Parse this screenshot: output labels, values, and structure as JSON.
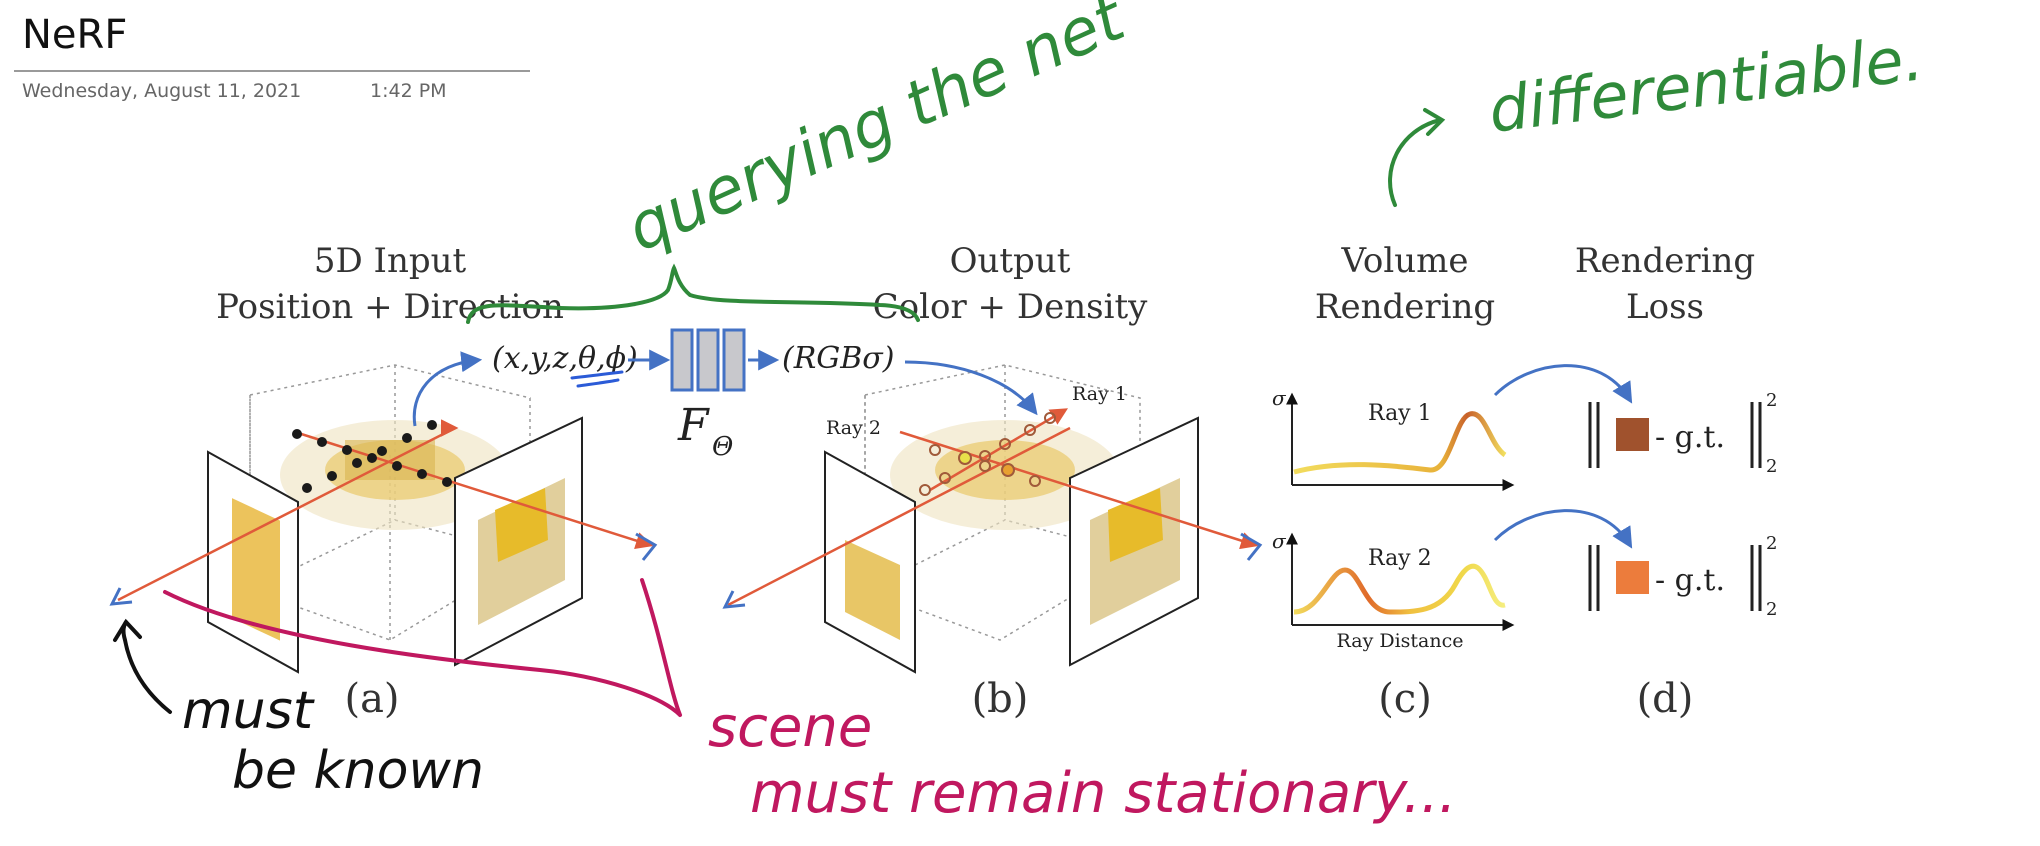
{
  "note": {
    "title": "NeRF",
    "date": "Wednesday, August 11, 2021",
    "time": "1:42 PM"
  },
  "figure": {
    "a": {
      "heading_line1": "5D Input",
      "heading_line2": "Position + Direction",
      "label": "(a)"
    },
    "input_tuple": "(x,y,z,θ,ϕ)",
    "network_label": "F",
    "network_subscript": "Θ",
    "output_tuple": "(RGBσ)",
    "b": {
      "heading_line1": "Output",
      "heading_line2": "Color + Density",
      "label": "(b)",
      "ray1": "Ray 1",
      "ray2": "Ray 2"
    },
    "c": {
      "heading_line1": "Volume",
      "heading_line2": "Rendering",
      "label": "(c)",
      "sigma": "σ",
      "ray1": "Ray 1",
      "ray2": "Ray 2",
      "xlabel": "Ray Distance"
    },
    "d": {
      "heading_line1": "Rendering",
      "heading_line2": "Loss",
      "label": "(d)",
      "gt": "- g.t.",
      "sup": "2",
      "sub": "2"
    }
  },
  "colors": {
    "ink_green": "#2f8a3a",
    "ink_magenta": "#c0185f",
    "ink_black": "#111111",
    "ray_red": "#e05a3a",
    "arrow_blue": "#4472c4",
    "net_fill": "#c8c8cc",
    "swatch1": "#a0522d",
    "swatch2": "#ec7c3c"
  },
  "annotations": {
    "querying": "querying the net",
    "differentiable": "differentiable.",
    "must_be_known_1": "must",
    "must_be_known_2": "be known",
    "scene_1": "scene",
    "scene_2": "must remain stationary..."
  }
}
